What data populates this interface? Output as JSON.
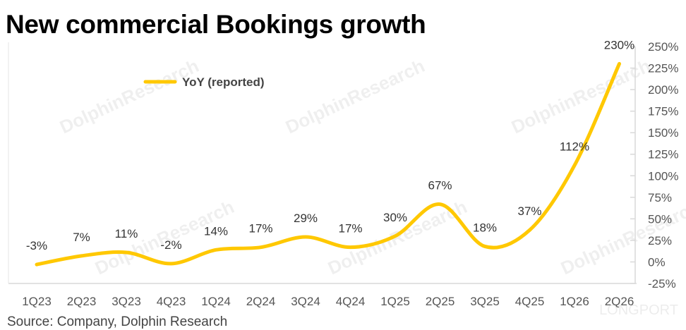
{
  "title": "New commercial Bookings growth",
  "source": "Source:  Company, Dolphin Research",
  "watermark": "DolphinResearch",
  "corner_logo": "LONGPORT",
  "chart_data": {
    "type": "line",
    "title": "New commercial Bookings growth",
    "categories": [
      "1Q23",
      "2Q23",
      "3Q23",
      "4Q23",
      "1Q24",
      "2Q24",
      "3Q24",
      "4Q24",
      "1Q25",
      "2Q25",
      "3Q25",
      "4Q25",
      "1Q26",
      "2Q26"
    ],
    "series": [
      {
        "name": "YoY  (reported)",
        "values": [
          -3,
          7,
          11,
          -2,
          14,
          17,
          29,
          17,
          30,
          67,
          18,
          37,
          112,
          230
        ],
        "color": "#FFC800"
      }
    ],
    "data_labels": [
      "-3%",
      "7%",
      "11%",
      "-2%",
      "14%",
      "17%",
      "29%",
      "17%",
      "30%",
      "67%",
      "18%",
      "37%",
      "112%",
      "230%"
    ],
    "y_axis": {
      "position": "right",
      "ylim": [
        -25,
        250
      ],
      "ticks": [
        -25,
        0,
        25,
        50,
        75,
        100,
        125,
        150,
        175,
        200,
        225,
        250
      ],
      "tick_labels": [
        "-25%",
        "0%",
        "25%",
        "50%",
        "75%",
        "100%",
        "125%",
        "150%",
        "175%",
        "200%",
        "225%",
        "250%"
      ]
    },
    "xlabel": "",
    "ylabel": "",
    "legend": {
      "position": "top-left"
    },
    "grid": false,
    "smooth": true
  }
}
